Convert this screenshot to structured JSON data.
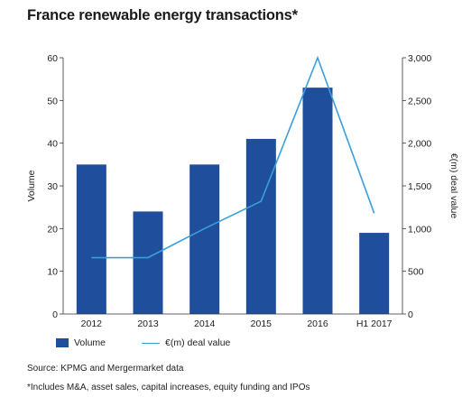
{
  "title": "France renewable energy transactions*",
  "source": "Source: KPMG and Mergermarket data",
  "footnote": "*Includes M&A, asset sales, capital increases, equity funding and IPOs",
  "chart_data": {
    "type": "bar+line",
    "categories": [
      "2012",
      "2013",
      "2014",
      "2015",
      "2016",
      "H1 2017"
    ],
    "series": [
      {
        "name": "Volume",
        "type": "bar",
        "axis": "left",
        "color": "#1f4e9c",
        "values": [
          35,
          24,
          35,
          41,
          53,
          19
        ]
      },
      {
        "name": "€(m) deal value",
        "type": "line",
        "axis": "right",
        "color": "#3a9fd8",
        "values": [
          660,
          660,
          1000,
          1320,
          3000,
          1180
        ]
      }
    ],
    "ylabel_left": "Volume",
    "ylabel_right": "€(m) deal value",
    "ylim_left": [
      0,
      60
    ],
    "ylim_right": [
      0,
      3000
    ],
    "yticks_left": [
      "0",
      "10",
      "20",
      "30",
      "40",
      "50",
      "60"
    ],
    "yticks_right": [
      "0",
      "500",
      "1,000",
      "1,500",
      "2,000",
      "2,500",
      "3,000"
    ],
    "legend_position": "bottom-left",
    "grid": false
  }
}
